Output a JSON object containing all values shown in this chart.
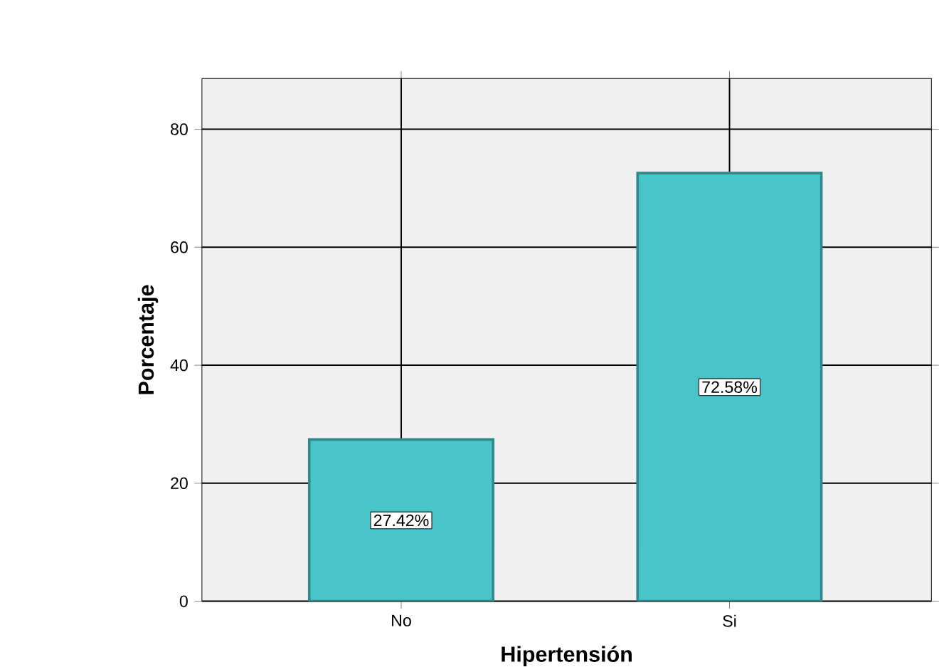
{
  "chart_data": {
    "type": "bar",
    "xlabel": "Hipertensión",
    "ylabel": "Porcentaje",
    "categories": [
      "No",
      "Si"
    ],
    "values": [
      27.42,
      72.58
    ],
    "value_labels": [
      "27.42%",
      "72.58%"
    ],
    "color": "#48c4c8",
    "ylim": [
      0,
      88.6
    ],
    "yticks": [
      0,
      20,
      40,
      60,
      80
    ],
    "grid": true
  }
}
